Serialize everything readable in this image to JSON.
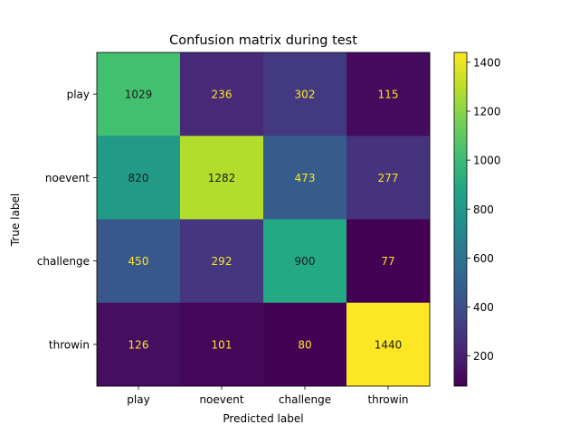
{
  "chart_data": {
    "type": "heatmap",
    "title": "Confusion matrix during test",
    "xlabel": "Predicted label",
    "ylabel": "True label",
    "row_labels": [
      "play",
      "noevent",
      "challenge",
      "throwin"
    ],
    "col_labels": [
      "play",
      "noevent",
      "challenge",
      "throwin"
    ],
    "values": [
      [
        1029,
        236,
        302,
        115
      ],
      [
        820,
        1282,
        473,
        277
      ],
      [
        450,
        292,
        900,
        77
      ],
      [
        126,
        101,
        80,
        1440
      ]
    ],
    "colormap": "viridis",
    "color_range": [
      77,
      1440
    ],
    "colorbar_ticks": [
      200,
      400,
      600,
      800,
      1000,
      1200,
      1400
    ],
    "colorbar_tick_labels": [
      "200",
      "400",
      "600",
      "800",
      "1000",
      "1200",
      "1400"
    ],
    "text_color_light": "#fde725",
    "text_color_dark": "#1a1a1a"
  }
}
